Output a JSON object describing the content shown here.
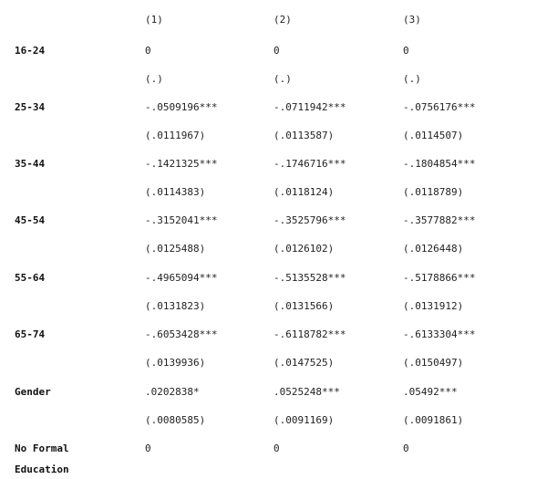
{
  "headers": [
    "(1)",
    "(2)",
    "(3)"
  ],
  "rows": [
    {
      "label": "16-24",
      "coef": [
        "0",
        "0",
        "0"
      ],
      "se": [
        "(.)",
        "(.)",
        "(.)"
      ]
    },
    {
      "label": "25-34",
      "coef": [
        "-.0509196***",
        "-.0711942***",
        "-.0756176***"
      ],
      "se": [
        "(.0111967)",
        "(.0113587)",
        "(.0114507)"
      ]
    },
    {
      "label": "35-44",
      "coef": [
        "-.1421325***",
        "-.1746716***",
        "-.1804854***"
      ],
      "se": [
        "(.0114383)",
        "(.0118124)",
        "(.0118789)"
      ]
    },
    {
      "label": "45-54",
      "coef": [
        "-.3152041***",
        "-.3525796***",
        "-.3577882***"
      ],
      "se": [
        "(.0125488)",
        "(.0126102)",
        "(.0126448)"
      ]
    },
    {
      "label": "55-64",
      "coef": [
        "-.4965094***",
        "-.5135528***",
        "-.5178866***"
      ],
      "se": [
        "(.0131823)",
        "(.0131566)",
        "(.0131912)"
      ]
    },
    {
      "label": "65-74",
      "coef": [
        "-.6053428***",
        "-.6118782***",
        "-.6133304***"
      ],
      "se": [
        "(.0139936)",
        "(.0147525)",
        "(.0150497)"
      ]
    },
    {
      "label": "Gender",
      "coef": [
        ".0202838*",
        ".0525248***",
        ".05492***"
      ],
      "se": [
        "(.0080585)",
        "(.0091169)",
        "(.0091861)"
      ]
    },
    {
      "label": "No Formal",
      "coef": [
        "0",
        "0",
        "0"
      ]
    },
    {
      "label": "Education"
    }
  ]
}
